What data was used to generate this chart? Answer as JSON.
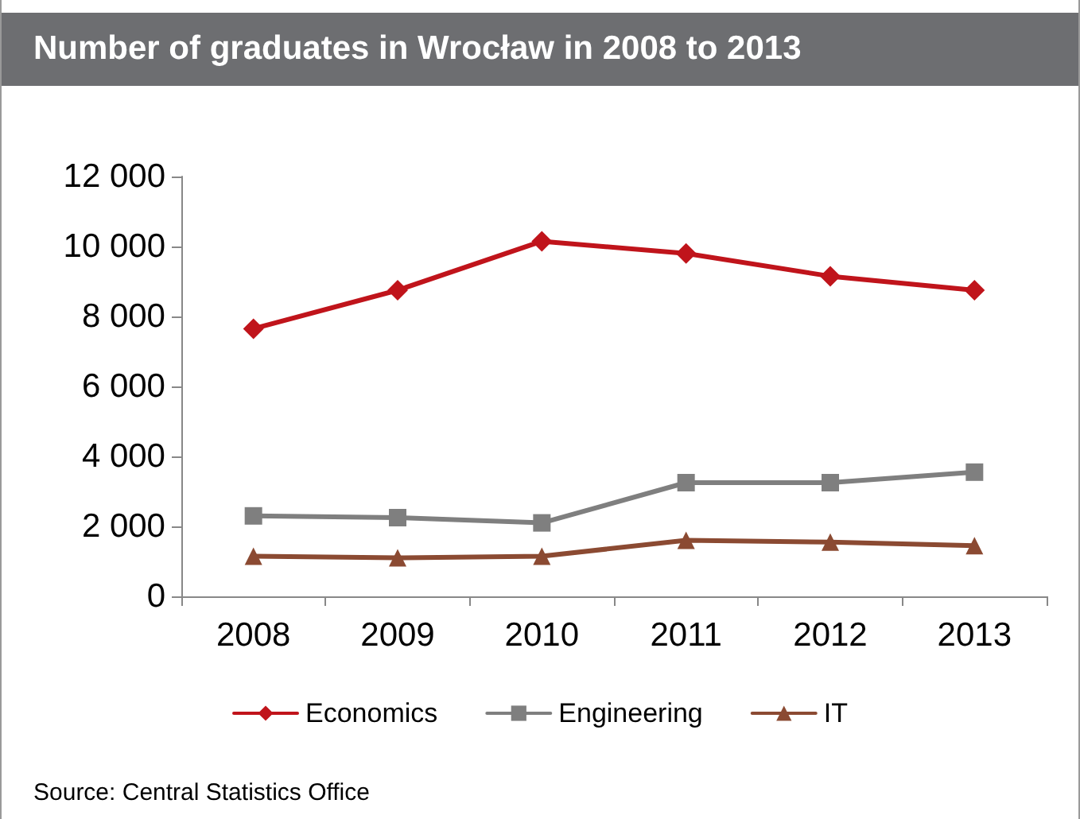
{
  "chart_data": {
    "type": "line",
    "title": "Number of graduates in Wrocław in 2008 to 2013",
    "categories": [
      "2008",
      "2009",
      "2010",
      "2011",
      "2012",
      "2013"
    ],
    "series": [
      {
        "name": "Economics",
        "color": "#c0141b",
        "marker": "diamond",
        "values": [
          7650,
          8750,
          10150,
          9800,
          9150,
          8750
        ]
      },
      {
        "name": "Engineering",
        "color": "#7f7f7f",
        "marker": "square",
        "values": [
          2300,
          2250,
          2100,
          3250,
          3250,
          3550
        ]
      },
      {
        "name": "IT",
        "color": "#8b4a32",
        "marker": "triangle",
        "values": [
          1150,
          1100,
          1150,
          1600,
          1550,
          1450
        ]
      }
    ],
    "ylim": [
      0,
      12000
    ],
    "yticks": [
      {
        "value": 0,
        "label": "0"
      },
      {
        "value": 2000,
        "label": "2 000"
      },
      {
        "value": 4000,
        "label": "4 000"
      },
      {
        "value": 6000,
        "label": "6 000"
      },
      {
        "value": 8000,
        "label": "8 000"
      },
      {
        "value": 10000,
        "label": "10 000"
      },
      {
        "value": 12000,
        "label": "12 000"
      }
    ],
    "grid": false,
    "legend": "bottom",
    "line_style": "solid",
    "annotations": [
      "Source:  Central Statistics Office"
    ]
  }
}
